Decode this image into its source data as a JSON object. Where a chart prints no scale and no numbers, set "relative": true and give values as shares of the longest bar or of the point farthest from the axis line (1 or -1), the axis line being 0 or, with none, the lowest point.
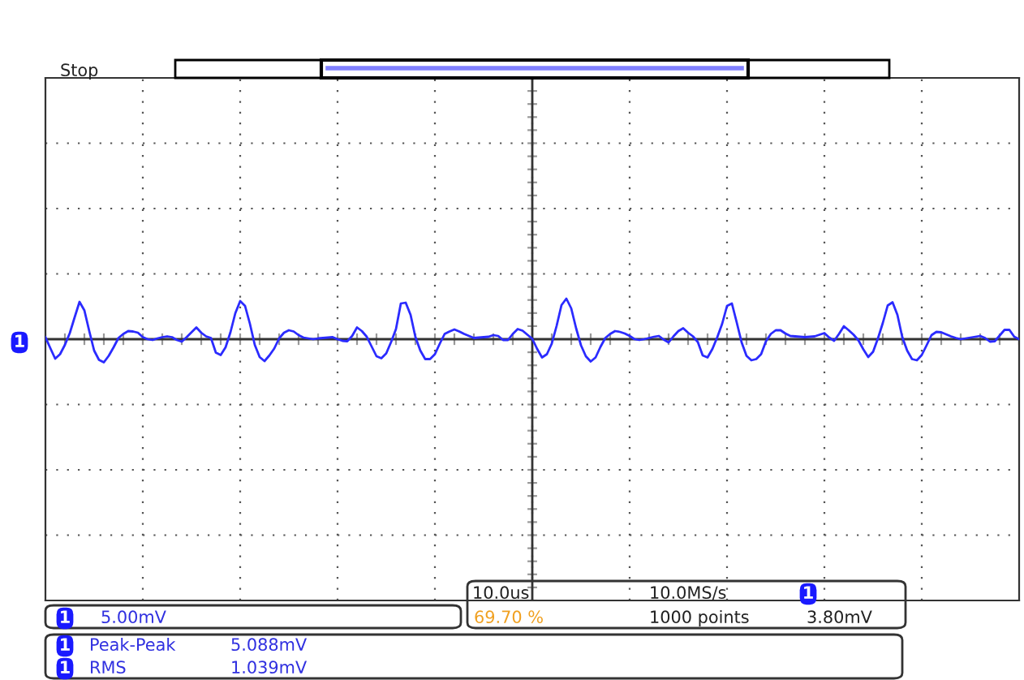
{
  "chart_data": {
    "type": "line",
    "relative": true,
    "grid": true,
    "line_style": "solid",
    "marker": "none",
    "categories": [
      null,
      null,
      null,
      null,
      null,
      null,
      null,
      null,
      null,
      null,
      null,
      null,
      null,
      null,
      null,
      null,
      null,
      null,
      null,
      null,
      null,
      null,
      null,
      null,
      null,
      null,
      null,
      null,
      null,
      null,
      null,
      null,
      null,
      null,
      null,
      null,
      null,
      null,
      null,
      null,
      null,
      null,
      null,
      null,
      null,
      null,
      null,
      null,
      null,
      null,
      null,
      null,
      null,
      null,
      null,
      null,
      null,
      null,
      null,
      null,
      null,
      null,
      null,
      null,
      null,
      null,
      null,
      null,
      null,
      null,
      null,
      null,
      null,
      null,
      null,
      null,
      null,
      null,
      null,
      null,
      null,
      null,
      null,
      null,
      null,
      null,
      null,
      null,
      null,
      null,
      null,
      null,
      null,
      null,
      null,
      null,
      null,
      null,
      null,
      null,
      null,
      null,
      null,
      null,
      null,
      null,
      null,
      null,
      null,
      null,
      null,
      null,
      null,
      null,
      null,
      null,
      null,
      null,
      null,
      null,
      null,
      null,
      null,
      null,
      null,
      null,
      null,
      null,
      null,
      null,
      null,
      null,
      null,
      null,
      null,
      null,
      null,
      null,
      null,
      null,
      null,
      null,
      null,
      null,
      null,
      null,
      null,
      null,
      null,
      null,
      null,
      null,
      null,
      null,
      null,
      null,
      null,
      null,
      null,
      null,
      null,
      null,
      null,
      null,
      null,
      null,
      null,
      null,
      null,
      null,
      null,
      null,
      null,
      null,
      null,
      null,
      null,
      null,
      null,
      null,
      null,
      null,
      null,
      null,
      null,
      null,
      null,
      null,
      null,
      null,
      null,
      null,
      null,
      null,
      null,
      null,
      null,
      null,
      null,
      null,
      null
    ],
    "series": [
      {
        "color": "#2b2bff",
        "values": [
          0.05,
          -0.22,
          -0.48,
          -0.37,
          -0.14,
          0.15,
          0.54,
          0.92,
          0.71,
          0.2,
          -0.28,
          -0.51,
          -0.57,
          -0.41,
          -0.2,
          0.03,
          0.13,
          0.2,
          0.19,
          0.16,
          0.05,
          0,
          -0.02,
          0.02,
          0.05,
          0.07,
          0.05,
          -0.02,
          -0.06,
          0.05,
          0.17,
          0.29,
          0.16,
          0.07,
          0.03,
          -0.33,
          -0.39,
          -0.2,
          0.17,
          0.64,
          0.94,
          0.82,
          0.38,
          -0.14,
          -0.44,
          -0.54,
          -0.4,
          -0.23,
          0.02,
          0.16,
          0.22,
          0.19,
          0.1,
          0.04,
          0.02,
          0,
          0.02,
          0.03,
          0.04,
          0.05,
          0,
          -0.04,
          -0.05,
          0.08,
          0.29,
          0.2,
          0.06,
          -0.18,
          -0.42,
          -0.47,
          -0.35,
          -0.07,
          0.25,
          0.88,
          0.9,
          0.6,
          0.05,
          -0.28,
          -0.49,
          -0.49,
          -0.37,
          -0.11,
          0.13,
          0.19,
          0.24,
          0.19,
          0.13,
          0.08,
          0.03,
          0.04,
          0.05,
          0.06,
          0.1,
          0.08,
          -0.02,
          -0.02,
          0.13,
          0.25,
          0.21,
          0.11,
          0.01,
          -0.24,
          -0.45,
          -0.37,
          -0.11,
          0.33,
          0.84,
          1.0,
          0.76,
          0.27,
          -0.15,
          -0.42,
          -0.55,
          -0.45,
          -0.19,
          0.03,
          0.13,
          0.2,
          0.18,
          0.14,
          0.08,
          0,
          -0.02,
          0,
          0.03,
          0.06,
          0.08,
          -0.01,
          -0.08,
          0.07,
          0.2,
          0.27,
          0.16,
          0.07,
          -0.07,
          -0.4,
          -0.45,
          -0.24,
          0.05,
          0.38,
          0.82,
          0.88,
          0.41,
          -0.08,
          -0.41,
          -0.52,
          -0.49,
          -0.37,
          -0.05,
          0.13,
          0.22,
          0.22,
          0.14,
          0.08,
          0.07,
          0.06,
          0.05,
          0.06,
          0.07,
          0.11,
          0.15,
          0.04,
          -0.04,
          0.13,
          0.32,
          0.22,
          0.11,
          -0.03,
          -0.25,
          -0.44,
          -0.31,
          0.02,
          0.4,
          0.83,
          0.91,
          0.6,
          0.05,
          -0.28,
          -0.49,
          -0.52,
          -0.39,
          -0.15,
          0.1,
          0.18,
          0.17,
          0.12,
          0.07,
          0.03,
          0,
          0.02,
          0.04,
          0.06,
          0.08,
          0.03,
          -0.06,
          -0.05,
          0.09,
          0.23,
          0.23,
          0.06,
          0
        ]
      }
    ],
    "annotations": [
      "Stop",
      "10.0us",
      "10.0MS/s",
      "1",
      "69.70 %",
      "1000 points",
      "3.80mV",
      "1",
      "5.00mV",
      "1",
      "Peak-Peak",
      "5.088mV",
      "1",
      "RMS",
      "1.039mV",
      "1"
    ]
  }
}
